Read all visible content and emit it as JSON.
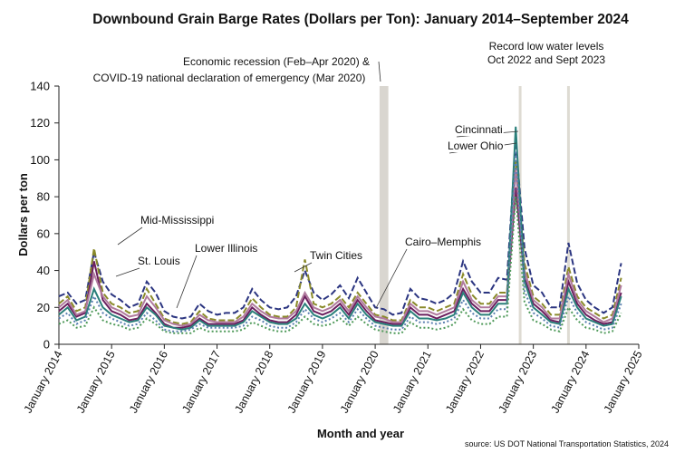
{
  "chart_data": {
    "type": "line",
    "title": "Downbound Grain Barge Rates (Dollars per Ton): January 2014–September 2024",
    "x_label": "Month and year",
    "y_label": "Dollars per ton",
    "source": "source: US DOT National Transportation Statistics, 2024",
    "annotations": [
      {
        "lines": [
          "Economic recession (Feb–Apr 2020) &",
          "COVID-19 national declaration of emergency (Mar 2020)"
        ]
      },
      {
        "lines": [
          "Record low water levels",
          "Oct 2022 and Sept 2023"
        ]
      }
    ],
    "shaded_periods": [
      {
        "start": "2020-02",
        "end": "2020-04"
      }
    ],
    "marker_lines": [
      "2022-10",
      "2023-09"
    ],
    "ylim": [
      0,
      140
    ],
    "yticks": [
      0,
      20,
      40,
      60,
      80,
      100,
      120,
      140
    ],
    "xlim": [
      "2014-01",
      "2025-01"
    ],
    "xticks": [
      {
        "value": "2014-01",
        "label": "January 2014"
      },
      {
        "value": "2015-01",
        "label": "January 2015"
      },
      {
        "value": "2016-01",
        "label": "January 2016"
      },
      {
        "value": "2017-01",
        "label": "January 2017"
      },
      {
        "value": "2018-01",
        "label": "January 2018"
      },
      {
        "value": "2019-01",
        "label": "January 2019"
      },
      {
        "value": "2020-01",
        "label": "January 2020"
      },
      {
        "value": "2021-01",
        "label": "January 2021"
      },
      {
        "value": "2022-01",
        "label": "January 2022"
      },
      {
        "value": "2023-01",
        "label": "January 2023"
      },
      {
        "value": "2024-01",
        "label": "January 2024"
      },
      {
        "value": "2025-01",
        "label": "January 2025"
      }
    ],
    "x": [
      "2014-01",
      "2014-03",
      "2014-05",
      "2014-07",
      "2014-09",
      "2014-11",
      "2015-01",
      "2015-03",
      "2015-05",
      "2015-07",
      "2015-09",
      "2015-11",
      "2016-01",
      "2016-03",
      "2016-05",
      "2016-07",
      "2016-09",
      "2016-11",
      "2017-01",
      "2017-03",
      "2017-05",
      "2017-07",
      "2017-09",
      "2017-11",
      "2018-01",
      "2018-03",
      "2018-05",
      "2018-07",
      "2018-09",
      "2018-11",
      "2019-01",
      "2019-03",
      "2019-05",
      "2019-07",
      "2019-09",
      "2019-11",
      "2020-01",
      "2020-03",
      "2020-05",
      "2020-07",
      "2020-09",
      "2020-11",
      "2021-01",
      "2021-03",
      "2021-05",
      "2021-07",
      "2021-09",
      "2021-11",
      "2022-01",
      "2022-03",
      "2022-05",
      "2022-07",
      "2022-09",
      "2022-11",
      "2023-01",
      "2023-03",
      "2023-05",
      "2023-07",
      "2023-09",
      "2023-11",
      "2024-01",
      "2024-03",
      "2024-05",
      "2024-07",
      "2024-09"
    ],
    "series": [
      {
        "name": "Twin Cities",
        "color": "#2b3580",
        "line_style": "dashed",
        "values": [
          26,
          28,
          22,
          24,
          50,
          34,
          27,
          24,
          20,
          22,
          34,
          28,
          18,
          15,
          14,
          15,
          22,
          18,
          16,
          17,
          17,
          20,
          30,
          24,
          20,
          19,
          20,
          26,
          40,
          28,
          24,
          27,
          32,
          25,
          36,
          28,
          20,
          19,
          16,
          17,
          30,
          25,
          24,
          22,
          24,
          28,
          45,
          34,
          28,
          28,
          36,
          35,
          110,
          52,
          32,
          28,
          20,
          20,
          55,
          33,
          24,
          20,
          17,
          20,
          44
        ]
      },
      {
        "name": "Mid-Mississippi",
        "color": "#8a8a2a",
        "line_style": "dashed",
        "values": [
          22,
          26,
          18,
          20,
          52,
          28,
          22,
          20,
          17,
          18,
          30,
          22,
          14,
          12,
          11,
          12,
          18,
          14,
          13,
          13,
          13,
          17,
          25,
          20,
          16,
          15,
          15,
          20,
          46,
          22,
          20,
          22,
          26,
          20,
          28,
          22,
          16,
          15,
          13,
          13,
          24,
          20,
          20,
          18,
          20,
          22,
          38,
          27,
          22,
          22,
          28,
          28,
          100,
          44,
          26,
          22,
          16,
          16,
          42,
          26,
          20,
          17,
          14,
          16,
          36
        ]
      },
      {
        "name": "Lower Illinois",
        "color": "#6b1f5e",
        "line_style": "solid",
        "values": [
          18,
          22,
          15,
          17,
          45,
          24,
          18,
          16,
          13,
          14,
          22,
          17,
          11,
          9,
          9,
          10,
          14,
          11,
          11,
          11,
          11,
          13,
          20,
          16,
          13,
          12,
          12,
          16,
          26,
          18,
          16,
          18,
          22,
          16,
          24,
          18,
          13,
          12,
          11,
          11,
          20,
          16,
          16,
          14,
          16,
          18,
          30,
          22,
          18,
          18,
          24,
          24,
          85,
          36,
          22,
          18,
          13,
          12,
          34,
          22,
          16,
          13,
          11,
          12,
          28
        ]
      },
      {
        "name": "St. Louis",
        "color": "#b07a9e",
        "line_style": "solid",
        "values": [
          20,
          24,
          16,
          18,
          38,
          26,
          20,
          18,
          15,
          16,
          26,
          20,
          13,
          11,
          10,
          11,
          16,
          13,
          12,
          12,
          12,
          15,
          22,
          18,
          15,
          14,
          14,
          18,
          28,
          20,
          18,
          20,
          24,
          18,
          26,
          20,
          15,
          14,
          12,
          12,
          22,
          18,
          18,
          16,
          18,
          20,
          34,
          24,
          20,
          20,
          26,
          26,
          95,
          40,
          24,
          20,
          14,
          14,
          38,
          24,
          18,
          15,
          12,
          14,
          32
        ]
      },
      {
        "name": "Cincinnati",
        "color": "#2a7f7a",
        "line_style": "solid",
        "values": [
          16,
          20,
          13,
          15,
          30,
          20,
          16,
          14,
          12,
          13,
          20,
          16,
          10,
          9,
          8,
          9,
          13,
          10,
          10,
          10,
          10,
          12,
          18,
          15,
          12,
          11,
          11,
          14,
          22,
          16,
          14,
          16,
          20,
          14,
          22,
          16,
          12,
          11,
          10,
          10,
          18,
          14,
          14,
          13,
          14,
          16,
          28,
          20,
          16,
          16,
          22,
          22,
          118,
          34,
          20,
          16,
          12,
          11,
          30,
          20,
          14,
          12,
          10,
          11,
          26
        ]
      },
      {
        "name": "Lower Ohio",
        "color": "#5a7fb0",
        "line_style": "dotted",
        "values": [
          14,
          17,
          11,
          13,
          26,
          17,
          14,
          12,
          10,
          11,
          17,
          13,
          8,
          7,
          7,
          8,
          11,
          9,
          9,
          9,
          9,
          10,
          15,
          13,
          10,
          9,
          9,
          12,
          19,
          14,
          12,
          14,
          17,
          12,
          19,
          14,
          10,
          9,
          8,
          8,
          15,
          12,
          12,
          11,
          12,
          14,
          24,
          17,
          14,
          14,
          19,
          19,
          105,
          29,
          17,
          14,
          10,
          9,
          26,
          17,
          12,
          10,
          8,
          9,
          22
        ]
      },
      {
        "name": "Cairo–Memphis",
        "color": "#4f9a5a",
        "line_style": "dotted",
        "values": [
          11,
          13,
          9,
          10,
          20,
          13,
          11,
          10,
          8,
          9,
          14,
          11,
          7,
          6,
          6,
          6,
          9,
          7,
          7,
          7,
          7,
          8,
          12,
          10,
          8,
          7,
          7,
          10,
          15,
          11,
          10,
          11,
          14,
          10,
          15,
          11,
          8,
          7,
          6,
          6,
          12,
          9,
          9,
          8,
          9,
          11,
          19,
          13,
          11,
          11,
          15,
          15,
          80,
          23,
          13,
          11,
          8,
          7,
          20,
          13,
          9,
          8,
          6,
          7,
          17
        ]
      }
    ]
  }
}
